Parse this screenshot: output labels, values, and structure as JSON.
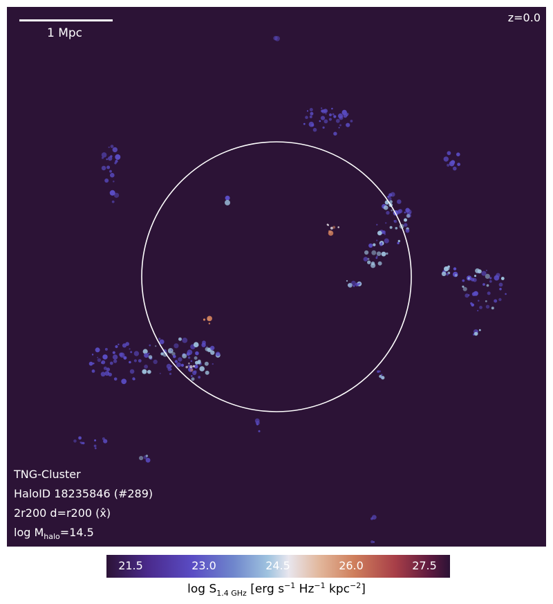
{
  "scale_bar_label": "1 Mpc",
  "redshift": "z=0.0",
  "info": {
    "simulation": "TNG-Cluster",
    "halo": "HaloID 18235846 (#289)",
    "view": "2r200 d=r200 (x̂)",
    "mass_prefix": "log M",
    "mass_sub": "halo",
    "mass_value": "=14.5"
  },
  "colorbar": {
    "ticks": [
      "21.5",
      "23.0",
      "24.5",
      "26.0",
      "27.5"
    ],
    "label_prefix": "log S",
    "label_sub": "1.4 GHz",
    "label_units": " [erg s",
    "exp1": "−1",
    "label_hz": " Hz",
    "exp2": "−1",
    "label_kpc": " kpc",
    "exp3": "−2",
    "label_end": "]"
  },
  "colors": {
    "background": "#2c1336",
    "circle": "#ffffff",
    "emission_low": "#5a4cc4",
    "emission_mid": "#9fc3df",
    "emission_high": "#cf7f5c"
  }
}
